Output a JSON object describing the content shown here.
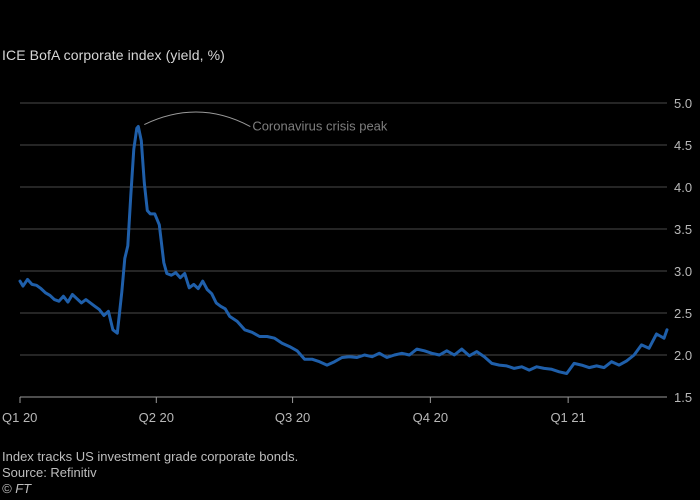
{
  "chart_data": {
    "type": "line",
    "title": "",
    "subtitle": "ICE BofA corporate index (yield, %)",
    "xlabel": "",
    "ylabel": "",
    "ylim": [
      1.5,
      5.0
    ],
    "y_ticks": [
      "1.5",
      "2.0",
      "2.5",
      "3.0",
      "3.5",
      "4.0",
      "4.5",
      "5.0"
    ],
    "x_ticks": [
      "Q1 20",
      "Q2 20",
      "Q3 20",
      "Q4 20",
      "Q1 21"
    ],
    "x_tick_dates": [
      "2020-01-01",
      "2020-04-01",
      "2020-07-01",
      "2020-10-01",
      "2021-01-01"
    ],
    "xlim": [
      "2020-01-01",
      "2021-03-08"
    ],
    "grid": true,
    "line_color": "#1f5faa",
    "annotation": {
      "text": "Coronavirus crisis peak",
      "date": "2020-03-20",
      "value": 4.72
    },
    "series": [
      {
        "x": [
          "2020-01-01",
          "2020-01-03",
          "2020-01-06",
          "2020-01-09",
          "2020-01-12",
          "2020-01-15",
          "2020-01-18",
          "2020-01-21",
          "2020-01-24",
          "2020-01-27",
          "2020-01-30",
          "2020-02-02",
          "2020-02-05",
          "2020-02-08",
          "2020-02-11",
          "2020-02-14",
          "2020-02-17",
          "2020-02-20",
          "2020-02-23",
          "2020-02-26",
          "2020-02-29",
          "2020-03-03",
          "2020-03-06",
          "2020-03-09",
          "2020-03-11",
          "2020-03-13",
          "2020-03-15",
          "2020-03-17",
          "2020-03-19",
          "2020-03-20",
          "2020-03-22",
          "2020-03-24",
          "2020-03-26",
          "2020-03-28",
          "2020-03-31",
          "2020-04-03",
          "2020-04-06",
          "2020-04-08",
          "2020-04-11",
          "2020-04-14",
          "2020-04-17",
          "2020-04-20",
          "2020-04-23",
          "2020-04-26",
          "2020-04-29",
          "2020-05-02",
          "2020-05-05",
          "2020-05-08",
          "2020-05-11",
          "2020-05-14",
          "2020-05-17",
          "2020-05-20",
          "2020-05-25",
          "2020-05-30",
          "2020-06-04",
          "2020-06-09",
          "2020-06-14",
          "2020-06-19",
          "2020-06-24",
          "2020-06-29",
          "2020-07-04",
          "2020-07-09",
          "2020-07-14",
          "2020-07-19",
          "2020-07-24",
          "2020-07-29",
          "2020-08-03",
          "2020-08-08",
          "2020-08-13",
          "2020-08-18",
          "2020-08-23",
          "2020-08-28",
          "2020-09-02",
          "2020-09-07",
          "2020-09-12",
          "2020-09-17",
          "2020-09-22",
          "2020-09-27",
          "2020-10-02",
          "2020-10-07",
          "2020-10-12",
          "2020-10-17",
          "2020-10-22",
          "2020-10-27",
          "2020-11-01",
          "2020-11-06",
          "2020-11-11",
          "2020-11-16",
          "2020-11-21",
          "2020-11-26",
          "2020-12-01",
          "2020-12-06",
          "2020-12-11",
          "2020-12-16",
          "2020-12-21",
          "2020-12-26",
          "2020-12-31",
          "2021-01-05",
          "2021-01-10",
          "2021-01-15",
          "2021-01-20",
          "2021-01-25",
          "2021-01-30",
          "2021-02-04",
          "2021-02-09",
          "2021-02-14",
          "2021-02-19",
          "2021-02-24",
          "2021-03-01",
          "2021-03-04",
          "2021-03-06",
          "2021-03-08"
        ],
        "y": [
          2.88,
          2.82,
          2.9,
          2.84,
          2.83,
          2.79,
          2.74,
          2.71,
          2.66,
          2.64,
          2.7,
          2.63,
          2.72,
          2.67,
          2.62,
          2.66,
          2.62,
          2.58,
          2.54,
          2.47,
          2.52,
          2.3,
          2.26,
          2.75,
          3.15,
          3.3,
          3.9,
          4.45,
          4.7,
          4.72,
          4.55,
          4.05,
          3.72,
          3.68,
          3.68,
          3.55,
          3.1,
          2.97,
          2.95,
          2.98,
          2.92,
          2.97,
          2.8,
          2.84,
          2.79,
          2.88,
          2.78,
          2.73,
          2.62,
          2.58,
          2.55,
          2.46,
          2.4,
          2.3,
          2.27,
          2.22,
          2.22,
          2.2,
          2.14,
          2.1,
          2.05,
          1.95,
          1.95,
          1.92,
          1.88,
          1.92,
          1.97,
          1.98,
          1.97,
          2.0,
          1.98,
          2.02,
          1.97,
          2.0,
          2.02,
          2.0,
          2.07,
          2.05,
          2.02,
          2.0,
          2.05,
          2.0,
          2.07,
          1.99,
          2.04,
          1.98,
          1.9,
          1.88,
          1.87,
          1.84,
          1.86,
          1.82,
          1.86,
          1.84,
          1.83,
          1.8,
          1.78,
          1.9,
          1.88,
          1.85,
          1.87,
          1.85,
          1.92,
          1.88,
          1.93,
          2.0,
          2.12,
          2.08,
          2.25,
          2.22,
          2.2,
          2.3
        ]
      }
    ]
  },
  "footer": {
    "note": "Index tracks US investment grade corporate bonds.",
    "source": "Source: Refinitiv",
    "credit": "© FT"
  }
}
